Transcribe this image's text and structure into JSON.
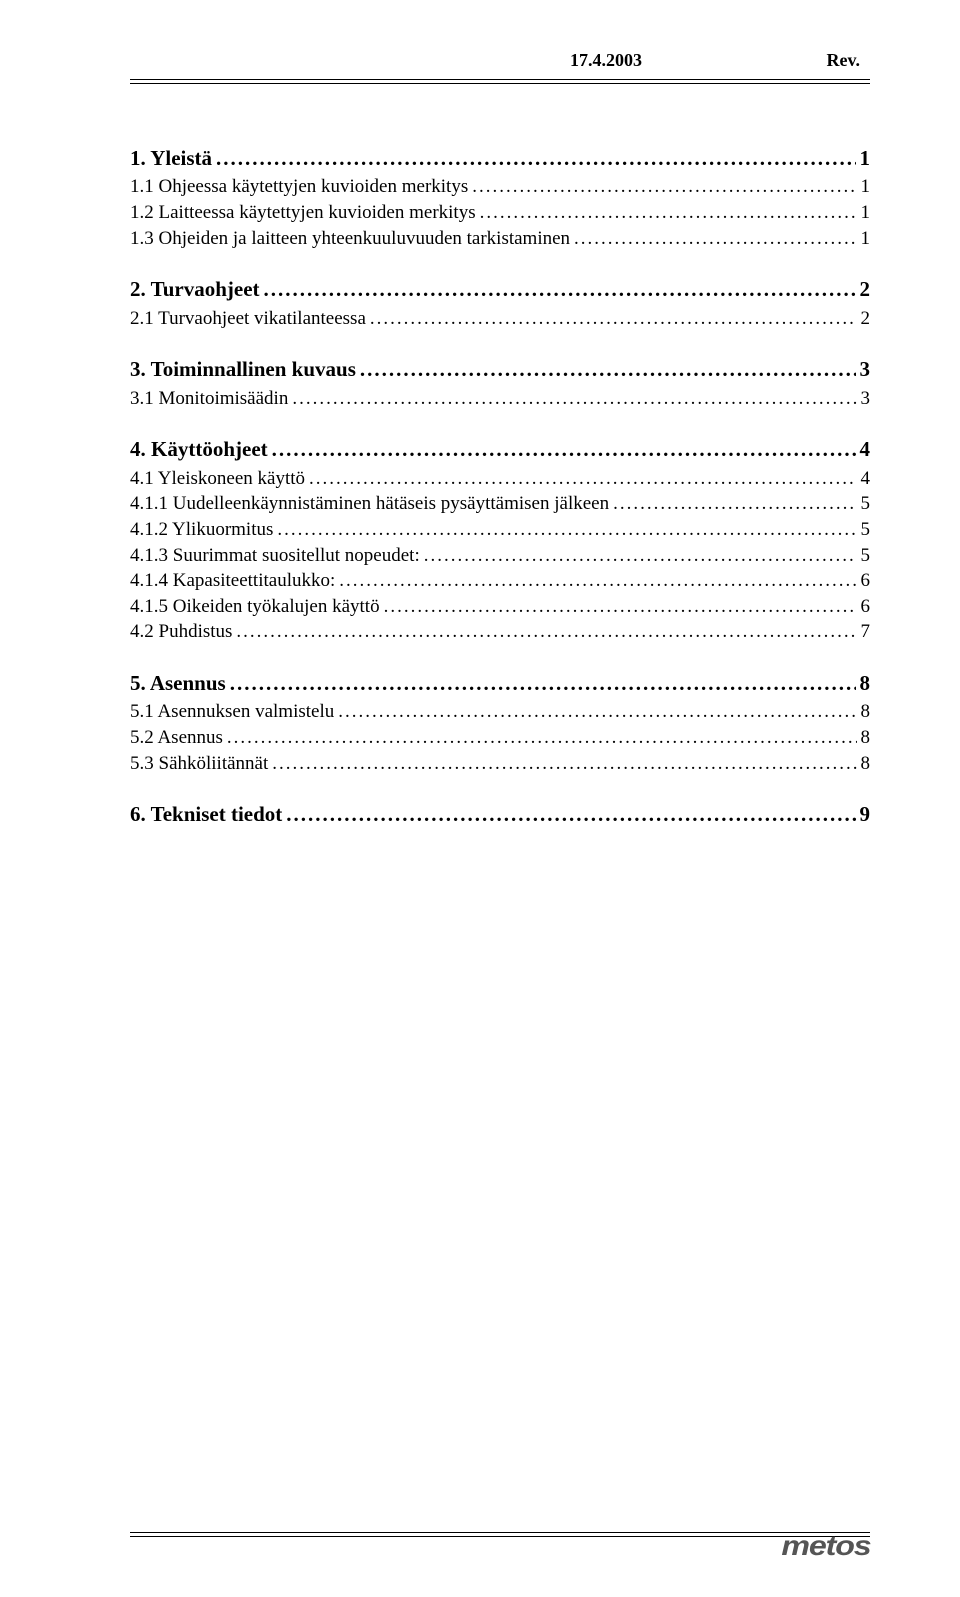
{
  "header": {
    "date": "17.4.2003",
    "rev": "Rev."
  },
  "toc": [
    {
      "level": 1,
      "title": "1. Yleistä",
      "page": "1"
    },
    {
      "level": 2,
      "title": "1.1 Ohjeessa käytettyjen kuvioiden merkitys",
      "page": "1"
    },
    {
      "level": 2,
      "title": "1.2 Laitteessa käytettyjen kuvioiden merkitys",
      "page": "1"
    },
    {
      "level": 2,
      "title": "1.3 Ohjeiden ja laitteen yhteenkuuluvuuden tarkistaminen",
      "page": "1"
    },
    {
      "level": 1,
      "title": "2. Turvaohjeet",
      "page": "2"
    },
    {
      "level": 2,
      "title": "2.1 Turvaohjeet vikatilanteessa",
      "page": "2"
    },
    {
      "level": 1,
      "title": "3. Toiminnallinen kuvaus",
      "page": "3"
    },
    {
      "level": 2,
      "title": "3.1 Monitoimisäädin",
      "page": "3"
    },
    {
      "level": 1,
      "title": "4. Käyttöohjeet",
      "page": "4"
    },
    {
      "level": 2,
      "title": "4.1 Yleiskoneen käyttö",
      "page": "4"
    },
    {
      "level": 3,
      "title": "4.1.1 Uudelleenkäynnistäminen hätäseis pysäyttämisen jälkeen",
      "page": "5"
    },
    {
      "level": 3,
      "title": "4.1.2 Ylikuormitus",
      "page": "5"
    },
    {
      "level": 3,
      "title": "4.1.3 Suurimmat suositellut nopeudet:",
      "page": "5"
    },
    {
      "level": 3,
      "title": "4.1.4 Kapasiteettitaulukko:",
      "page": "6"
    },
    {
      "level": 3,
      "title": "4.1.5 Oikeiden työkalujen käyttö",
      "page": "6"
    },
    {
      "level": 2,
      "title": "4.2 Puhdistus",
      "page": "7"
    },
    {
      "level": 1,
      "title": "5. Asennus",
      "page": "8"
    },
    {
      "level": 2,
      "title": "5.1 Asennuksen valmistelu",
      "page": "8"
    },
    {
      "level": 2,
      "title": "5.2 Asennus",
      "page": "8"
    },
    {
      "level": 2,
      "title": "5.3 Sähköliitännät",
      "page": "8"
    },
    {
      "level": 1,
      "title": "6. Tekniset tiedot",
      "page": "9"
    }
  ],
  "logo": "metos"
}
